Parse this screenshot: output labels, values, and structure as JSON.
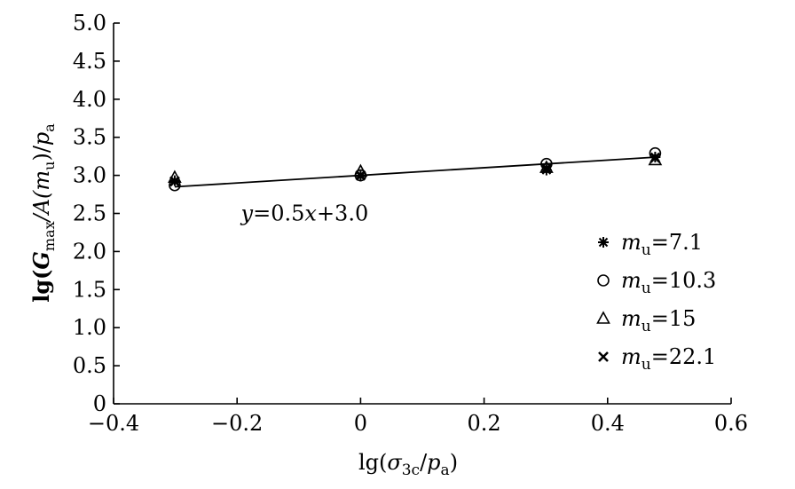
{
  "chart_data": {
    "type": "scatter",
    "xlabel": {
      "prefix": "lg(",
      "sym": "σ",
      "sub": "3c",
      "mid": "/",
      "sym2": "p",
      "sub2": "a",
      "suffix": ")"
    },
    "ylabel": {
      "prefix": "lg(",
      "sym": "G",
      "sub": "max",
      "mid": "/A(",
      "sym2": "m",
      "sub2": "u",
      "mid2": ")/",
      "sym3": "p",
      "sub3": "a"
    },
    "xlim": [
      -0.4,
      0.6
    ],
    "ylim": [
      0,
      5.0
    ],
    "x_ticks": [
      -0.4,
      -0.2,
      0,
      0.2,
      0.4,
      0.6
    ],
    "x_tick_labels": [
      "−0.4",
      "−0.2",
      "0",
      "0.2",
      "0.4",
      "0.6"
    ],
    "y_ticks": [
      0,
      0.5,
      1.0,
      1.5,
      2.0,
      2.5,
      3.0,
      3.5,
      4.0,
      4.5,
      5.0
    ],
    "y_tick_labels": [
      "0",
      "0.5",
      "1.0",
      "1.5",
      "2.0",
      "2.5",
      "3.0",
      "3.5",
      "4.0",
      "4.5",
      "5.0"
    ],
    "grid": false,
    "legend_position": "bottom-right",
    "series": [
      {
        "name": "m_u=7.1",
        "sym": "m",
        "sub": "u",
        "val": "=7.1",
        "marker": "asterisk",
        "x": [
          -0.301,
          0,
          0.301,
          0.477
        ],
        "y": [
          2.93,
          2.99,
          3.07,
          3.24
        ]
      },
      {
        "name": "m_u=10.3",
        "sym": "m",
        "sub": "u",
        "val": "=10.3",
        "marker": "circle",
        "x": [
          -0.301,
          0,
          0.301,
          0.477
        ],
        "y": [
          2.87,
          3.0,
          3.15,
          3.29
        ]
      },
      {
        "name": "m_u=15",
        "sym": "m",
        "sub": "u",
        "val": "=15",
        "marker": "triangle",
        "x": [
          -0.301,
          0,
          0.301,
          0.477
        ],
        "y": [
          2.97,
          3.05,
          3.1,
          3.2
        ]
      },
      {
        "name": "m_u=22.1",
        "sym": "m",
        "sub": "u",
        "val": "=22.1",
        "marker": "x",
        "x": [
          -0.301,
          0,
          0.301,
          0.477
        ],
        "y": [
          2.92,
          3.0,
          3.09,
          3.23
        ]
      }
    ],
    "fit_line": {
      "slope": 0.5,
      "intercept": 3.0,
      "x_range": [
        -0.301,
        0.477
      ]
    },
    "annotation": {
      "sym": "y",
      "mid": "=0.5",
      "sym2": "x",
      "suffix": "+3.0",
      "x": -0.165,
      "y": 2.5
    }
  }
}
